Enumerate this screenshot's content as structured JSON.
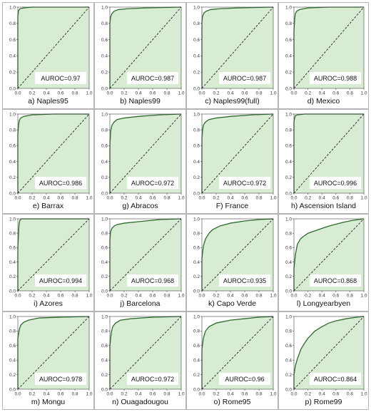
{
  "colors": {
    "fill": "#d8ecd4",
    "curve": "#2a6b2a",
    "diagonal": "#222222",
    "label_box": "#ffffff"
  },
  "chart_data": [
    {
      "type": "area",
      "caption": "a) Naples95",
      "auroc": "AUROC=0.97",
      "xlim": [
        0,
        1
      ],
      "ylim": [
        0,
        1
      ],
      "xticks": [
        "0.0",
        "0.2",
        "0.4",
        "0.6",
        "0.8",
        "1.0"
      ],
      "yticks": [
        "0.0",
        "0.2",
        "0.4",
        "0.6",
        "0.8",
        "1.0"
      ],
      "x": [
        0,
        0.0,
        0.01,
        0.03,
        0.08,
        0.2,
        1.0
      ],
      "y": [
        0,
        0.88,
        0.96,
        0.98,
        0.99,
        1.0,
        1.0
      ]
    },
    {
      "type": "area",
      "caption": "b) Naples99",
      "auroc": "AUROC=0.987",
      "xlim": [
        0,
        1
      ],
      "ylim": [
        0,
        1
      ],
      "xticks": [
        "0.0",
        "0.2",
        "0.4",
        "0.6",
        "0.8",
        "1.0"
      ],
      "yticks": [
        "0.0",
        "0.2",
        "0.4",
        "0.6",
        "0.8",
        "1.0"
      ],
      "x": [
        0,
        0.0,
        0.01,
        0.03,
        0.06,
        0.12,
        0.25,
        0.5,
        1.0
      ],
      "y": [
        0,
        0.8,
        0.88,
        0.92,
        0.95,
        0.97,
        0.98,
        0.99,
        1.0
      ]
    },
    {
      "type": "area",
      "caption": "c) Naples99(full)",
      "auroc": "AUROC=0.987",
      "xlim": [
        0,
        1
      ],
      "ylim": [
        0,
        1
      ],
      "xticks": [
        "0.0",
        "0.2",
        "0.4",
        "0.6",
        "0.8",
        "1.0"
      ],
      "yticks": [
        "0.0",
        "0.2",
        "0.4",
        "0.6",
        "0.8",
        "1.0"
      ],
      "x": [
        0,
        0.0,
        0.01,
        0.03,
        0.06,
        0.12,
        0.25,
        0.5,
        1.0
      ],
      "y": [
        0,
        0.82,
        0.89,
        0.93,
        0.95,
        0.97,
        0.98,
        0.99,
        1.0
      ]
    },
    {
      "type": "area",
      "caption": "d) Mexico",
      "auroc": "AUROC=0.988",
      "xlim": [
        0,
        1
      ],
      "ylim": [
        0,
        1
      ],
      "xticks": [
        "0.0",
        "0.2",
        "0.4",
        "0.6",
        "0.8",
        "1.0"
      ],
      "yticks": [
        "0.0",
        "0.2",
        "0.4",
        "0.6",
        "0.8",
        "1.0"
      ],
      "x": [
        0,
        0.0,
        0.01,
        0.02,
        0.04,
        0.08,
        0.2,
        0.5,
        1.0
      ],
      "y": [
        0,
        0.7,
        0.85,
        0.92,
        0.95,
        0.97,
        0.99,
        1.0,
        1.0
      ]
    },
    {
      "type": "area",
      "caption": "e) Barrax",
      "auroc": "AUROC=0.986",
      "xlim": [
        0,
        1
      ],
      "ylim": [
        0,
        1
      ],
      "xticks": [
        "0.0",
        "0.2",
        "0.4",
        "0.6",
        "0.8",
        "1.0"
      ],
      "yticks": [
        "0.0",
        "0.2",
        "0.4",
        "0.6",
        "0.8",
        "1.0"
      ],
      "x": [
        0,
        0.0,
        0.01,
        0.02,
        0.04,
        0.08,
        0.2,
        0.5,
        1.0
      ],
      "y": [
        0,
        0.75,
        0.86,
        0.92,
        0.95,
        0.97,
        0.99,
        1.0,
        1.0
      ]
    },
    {
      "type": "area",
      "caption": "g) Abracos",
      "auroc": "AUROC=0.972",
      "xlim": [
        0,
        1
      ],
      "ylim": [
        0,
        1
      ],
      "xticks": [
        "0.0",
        "0.2",
        "0.4",
        "0.6",
        "0.8",
        "1.0"
      ],
      "yticks": [
        "0.0",
        "0.2",
        "0.4",
        "0.6",
        "0.8",
        "1.0"
      ],
      "x": [
        0,
        0.0,
        0.01,
        0.03,
        0.06,
        0.1,
        0.2,
        0.4,
        0.7,
        1.0
      ],
      "y": [
        0,
        0.6,
        0.78,
        0.86,
        0.9,
        0.93,
        0.95,
        0.97,
        0.99,
        1.0
      ]
    },
    {
      "type": "area",
      "caption": "F) France",
      "auroc": "AUROC=0.972",
      "xlim": [
        0,
        1
      ],
      "ylim": [
        0,
        1
      ],
      "xticks": [
        "0.0",
        "0.2",
        "0.4",
        "0.6",
        "0.8",
        "1.0"
      ],
      "yticks": [
        "0.0",
        "0.2",
        "0.4",
        "0.6",
        "0.8",
        "1.0"
      ],
      "x": [
        0,
        0.0,
        0.01,
        0.02,
        0.05,
        0.1,
        0.2,
        0.4,
        0.7,
        1.0
      ],
      "y": [
        0,
        0.7,
        0.8,
        0.86,
        0.9,
        0.93,
        0.95,
        0.97,
        0.99,
        1.0
      ]
    },
    {
      "type": "area",
      "caption": "h) Ascension Island",
      "auroc": "AUROC=0.996",
      "xlim": [
        0,
        1
      ],
      "ylim": [
        0,
        1
      ],
      "xticks": [
        "0.0",
        "0.2",
        "0.4",
        "0.6",
        "0.8",
        "1.0"
      ],
      "yticks": [
        "0.0",
        "0.2",
        "0.4",
        "0.6",
        "0.8",
        "1.0"
      ],
      "x": [
        0,
        0.0,
        0.01,
        0.02,
        0.05,
        0.15,
        1.0
      ],
      "y": [
        0,
        0.9,
        0.95,
        0.98,
        0.99,
        1.0,
        1.0
      ]
    },
    {
      "type": "area",
      "caption": "i) Azores",
      "auroc": "AUROC=0.994",
      "xlim": [
        0,
        1
      ],
      "ylim": [
        0,
        1
      ],
      "xticks": [
        "0.0",
        "0.2",
        "0.4",
        "0.6",
        "0.8",
        "1.0"
      ],
      "yticks": [
        "0.0",
        "0.2",
        "0.4",
        "0.6",
        "0.8",
        "1.0"
      ],
      "x": [
        0,
        0.0,
        0.01,
        0.015,
        0.02,
        0.03,
        0.05,
        1.0
      ],
      "y": [
        0,
        0.6,
        0.8,
        0.9,
        0.95,
        0.98,
        1.0,
        1.0
      ]
    },
    {
      "type": "area",
      "caption": "j) Barcelona",
      "auroc": "AUROC=0.968",
      "xlim": [
        0,
        1
      ],
      "ylim": [
        0,
        1
      ],
      "xticks": [
        "0.0",
        "0.2",
        "0.4",
        "0.6",
        "0.8",
        "1.0"
      ],
      "yticks": [
        "0.0",
        "0.2",
        "0.4",
        "0.6",
        "0.8",
        "1.0"
      ],
      "x": [
        0,
        0.0,
        0.01,
        0.03,
        0.06,
        0.1,
        0.2,
        0.4,
        0.7,
        1.0
      ],
      "y": [
        0,
        0.7,
        0.82,
        0.87,
        0.9,
        0.92,
        0.94,
        0.96,
        0.99,
        1.0
      ]
    },
    {
      "type": "area",
      "caption": "k) Capo Verde",
      "auroc": "AUROC=0.935",
      "xlim": [
        0,
        1
      ],
      "ylim": [
        0,
        1
      ],
      "xticks": [
        "0.0",
        "0.2",
        "0.4",
        "0.6",
        "0.8",
        "1.0"
      ],
      "yticks": [
        "0.0",
        "0.2",
        "0.4",
        "0.6",
        "0.8",
        "1.0"
      ],
      "x": [
        0,
        0.0,
        0.02,
        0.05,
        0.1,
        0.15,
        0.25,
        0.4,
        0.6,
        0.8,
        1.0
      ],
      "y": [
        0,
        0.45,
        0.62,
        0.72,
        0.8,
        0.85,
        0.9,
        0.94,
        0.97,
        0.99,
        1.0
      ]
    },
    {
      "type": "area",
      "caption": "l) Longyearbyen",
      "auroc": "AUROC=0.868",
      "xlim": [
        0,
        1
      ],
      "ylim": [
        0,
        1
      ],
      "xticks": [
        "0.0",
        "0.2",
        "0.4",
        "0.6",
        "0.8",
        "1.0"
      ],
      "yticks": [
        "0.0",
        "0.2",
        "0.4",
        "0.6",
        "0.8",
        "1.0"
      ],
      "x": [
        0,
        0.0,
        0.02,
        0.05,
        0.1,
        0.2,
        0.35,
        0.5,
        0.7,
        0.85,
        1.0
      ],
      "y": [
        0,
        0.3,
        0.5,
        0.65,
        0.73,
        0.8,
        0.85,
        0.9,
        0.95,
        0.98,
        1.0
      ]
    },
    {
      "type": "area",
      "caption": "m) Mongu",
      "auroc": "AUROC=0.978",
      "xlim": [
        0,
        1
      ],
      "ylim": [
        0,
        1
      ],
      "xticks": [
        "0.0",
        "0.2",
        "0.4",
        "0.6",
        "0.8",
        "1.0"
      ],
      "yticks": [
        "0.0",
        "0.2",
        "0.4",
        "0.6",
        "0.8",
        "1.0"
      ],
      "x": [
        0,
        0.0,
        0.02,
        0.04,
        0.08,
        0.15,
        0.3,
        0.6,
        1.0
      ],
      "y": [
        0,
        0.7,
        0.82,
        0.88,
        0.92,
        0.95,
        0.98,
        0.99,
        1.0
      ]
    },
    {
      "type": "area",
      "caption": "n) Ouagadougou",
      "auroc": "AUROC=0.972",
      "xlim": [
        0,
        1
      ],
      "ylim": [
        0,
        1
      ],
      "xticks": [
        "0.0",
        "0.2",
        "0.4",
        "0.6",
        "0.8",
        "1.0"
      ],
      "yticks": [
        "0.0",
        "0.2",
        "0.4",
        "0.6",
        "0.8",
        "1.0"
      ],
      "x": [
        0,
        0.0,
        0.02,
        0.04,
        0.08,
        0.15,
        0.3,
        0.6,
        1.0
      ],
      "y": [
        0,
        0.6,
        0.78,
        0.86,
        0.91,
        0.95,
        0.97,
        0.99,
        1.0
      ]
    },
    {
      "type": "area",
      "caption": "o) Rome95",
      "auroc": "AUROC=0.96",
      "xlim": [
        0,
        1
      ],
      "ylim": [
        0,
        1
      ],
      "xticks": [
        "0.0",
        "0.2",
        "0.4",
        "0.6",
        "0.8",
        "1.0"
      ],
      "yticks": [
        "0.0",
        "0.2",
        "0.4",
        "0.6",
        "0.8",
        "1.0"
      ],
      "x": [
        0,
        0.0,
        0.02,
        0.05,
        0.1,
        0.2,
        0.4,
        0.6,
        0.8,
        1.0
      ],
      "y": [
        0,
        0.55,
        0.7,
        0.8,
        0.86,
        0.91,
        0.95,
        0.97,
        0.99,
        1.0
      ]
    },
    {
      "type": "area",
      "caption": "p) Rome99",
      "auroc": "AUROC=0.864",
      "xlim": [
        0,
        1
      ],
      "ylim": [
        0,
        1
      ],
      "xticks": [
        "0.0",
        "0.2",
        "0.4",
        "0.6",
        "0.8",
        "1.0"
      ],
      "yticks": [
        "0.0",
        "0.2",
        "0.4",
        "0.6",
        "0.8",
        "1.0"
      ],
      "x": [
        0,
        0.0,
        0.02,
        0.05,
        0.1,
        0.15,
        0.2,
        0.3,
        0.4,
        0.5,
        0.6,
        0.75,
        0.9,
        1.0
      ],
      "y": [
        0,
        0.2,
        0.32,
        0.42,
        0.55,
        0.63,
        0.7,
        0.8,
        0.86,
        0.91,
        0.94,
        0.97,
        0.99,
        1.0
      ]
    }
  ]
}
